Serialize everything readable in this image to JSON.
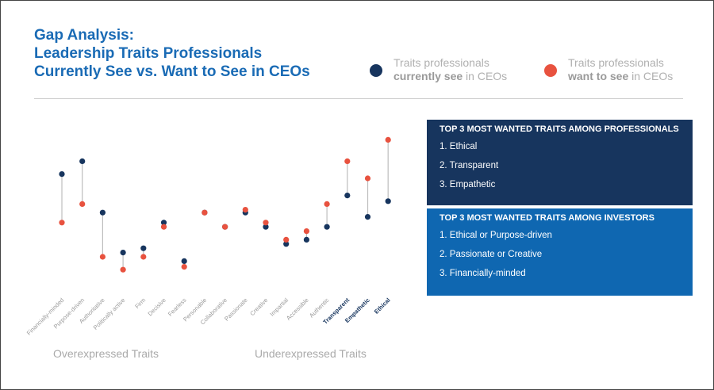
{
  "header": {
    "title_lines": [
      "Gap Analysis:",
      "Leadership Traits Professionals",
      "Currently See vs. Want to See in CEOs"
    ]
  },
  "chart_data": {
    "type": "dumbbell",
    "categories": [
      "Financially-minded",
      "Purpose-driven",
      "Authoritative",
      "Politically active",
      "Firm",
      "Decisive",
      "Fearless",
      "Personable",
      "Collaborative",
      "Passionate",
      "Creative",
      "Impartial",
      "Accessible",
      "Authentic",
      "Transparent",
      "Empathetic",
      "Ethical"
    ],
    "category_label_colors": [
      "#9a9a9a",
      "#9a9a9a",
      "#9a9a9a",
      "#9a9a9a",
      "#9a9a9a",
      "#9a9a9a",
      "#9a9a9a",
      "#9a9a9a",
      "#9a9a9a",
      "#9a9a9a",
      "#9a9a9a",
      "#9a9a9a",
      "#9a9a9a",
      "#9a9a9a",
      "#17355e",
      "#17355e",
      "#17355e"
    ],
    "series": [
      {
        "name": "Traits professionals currently see in CEOs",
        "name_emphasis": "currently see",
        "color": "#17355e",
        "values": [
          73,
          82,
          46,
          18,
          21,
          39,
          12,
          46,
          36,
          46,
          36,
          24,
          27,
          36,
          58,
          43,
          54
        ]
      },
      {
        "name": "Traits professionals want to see in CEOs",
        "name_emphasis": "want to see",
        "color": "#e8523f",
        "values": [
          39,
          52,
          15,
          6,
          15,
          36,
          8,
          46,
          36,
          48,
          39,
          27,
          33,
          52,
          82,
          70,
          97
        ]
      }
    ],
    "connector_color": "#bdbdbd",
    "annotations": [
      "Overexpressed Traits",
      "Underexpressed Traits"
    ]
  },
  "panels": [
    {
      "title": "TOP 3 MOST WANTED TRAITS AMONG PROFESSIONALS",
      "color": "#17355e",
      "items": [
        "1. Ethical",
        "2. Transparent",
        "3. Empathetic"
      ]
    },
    {
      "title": "TOP 3 MOST WANTED TRAITS AMONG INVESTORS",
      "color": "#0f67b1",
      "items": [
        "1. Ethical or Purpose-driven",
        "2. Passionate or Creative",
        "3. Financially-minded"
      ]
    }
  ]
}
